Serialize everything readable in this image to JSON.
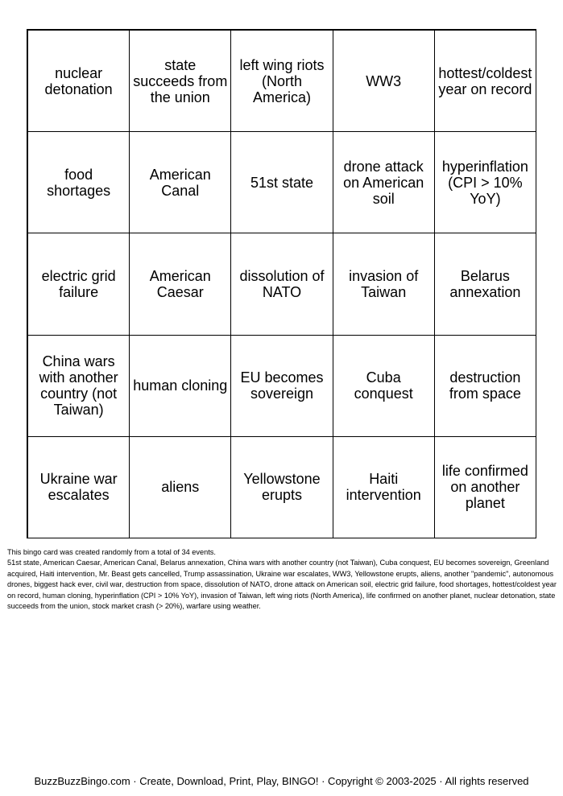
{
  "cells": [
    "nuclear detonation",
    "state succeeds from the union",
    "left wing riots (North America)",
    "WW3",
    "hottest/coldest year on record",
    "food shortages",
    "American Canal",
    "51st state",
    "drone attack on American soil",
    "hyperinflation (CPI > 10% YoY)",
    "electric grid failure",
    "American Caesar",
    "dissolution of NATO",
    "invasion of Taiwan",
    "Belarus annexation",
    "China wars with another country (not Taiwan)",
    "human cloning",
    "EU becomes sovereign",
    "Cuba conquest",
    "destruction from space",
    "Ukraine war escalates",
    "aliens",
    "Yellowstone erupts",
    "Haiti intervention",
    "life confirmed on another planet"
  ],
  "info": {
    "intro": "This bingo card was created randomly from a total of 34 events.",
    "events": "51st state, American Caesar, American Canal, Belarus annexation, China wars with another country (not Taiwan), Cuba conquest, EU becomes sovereign, Greenland acquired, Haiti intervention, Mr. Beast gets cancelled, Trump assassination, Ukraine war escalates, WW3, Yellowstone erupts, aliens, another \"pandemic\", autonomous drones, biggest hack ever, civil war, destruction from space, dissolution of NATO, drone attack on American soil, electric grid failure, food shortages, hottest/coldest year on record, human cloning, hyperinflation (CPI > 10% YoY), invasion of Taiwan, left wing riots (North America), life confirmed on another planet, nuclear detonation, state succeeds from the union, stock market crash (> 20%), warfare using weather."
  },
  "footer": "BuzzBuzzBingo.com · Create, Download, Print, Play, BINGO! · Copyright © 2003-2025 · All rights reserved"
}
